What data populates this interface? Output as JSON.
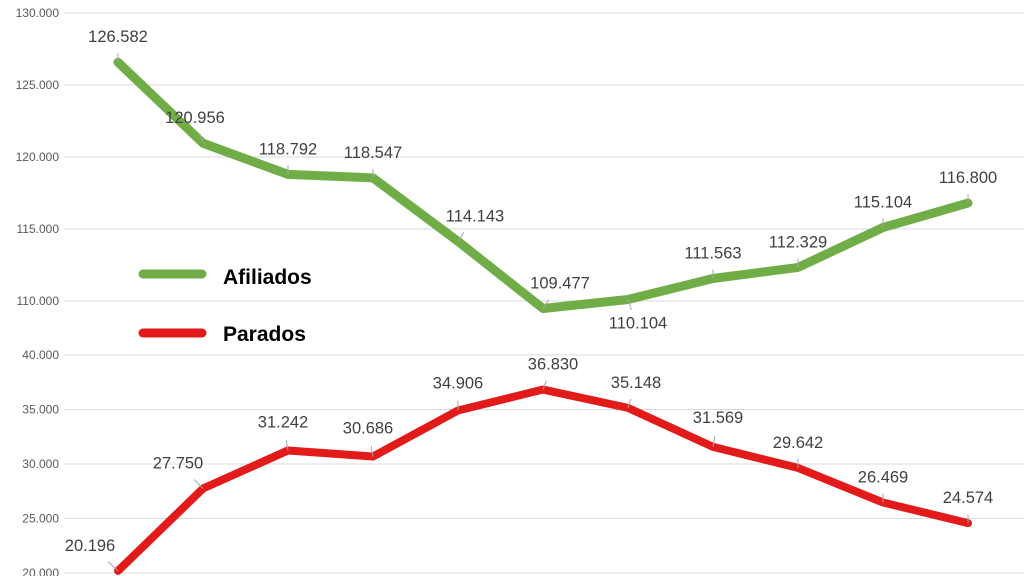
{
  "chart_data": [
    {
      "type": "line",
      "title": "",
      "xlabel": "",
      "ylabel": "",
      "ylim": [
        110000,
        130000
      ],
      "yticks": [
        "110.000",
        "115.000",
        "120.000",
        "125.000",
        "130.000"
      ],
      "grid": true,
      "legend": "left",
      "series": [
        {
          "name": "Afiliados",
          "color": "#70AD47",
          "values": [
            126582,
            120956,
            118792,
            118547,
            114143,
            109477,
            110104,
            111563,
            112329,
            115104,
            116800
          ],
          "labels": [
            "126.582",
            "120.956",
            "118.792",
            "118.547",
            "114.143",
            "109.477",
            "110.104",
            "111.563",
            "112.329",
            "115.104",
            "116.800"
          ]
        }
      ]
    },
    {
      "type": "line",
      "title": "",
      "xlabel": "",
      "ylabel": "",
      "ylim": [
        20000,
        40000
      ],
      "yticks": [
        "20.000",
        "25.000",
        "30.000",
        "35.000",
        "40.000"
      ],
      "grid": true,
      "legend": "left",
      "series": [
        {
          "name": "Parados",
          "color": "#E31A1A",
          "values": [
            20196,
            27750,
            31242,
            30686,
            34906,
            36830,
            35148,
            31569,
            29642,
            26469,
            24574
          ],
          "labels": [
            "20.196",
            "27.750",
            "31.242",
            "30.686",
            "34.906",
            "36.830",
            "35.148",
            "31.569",
            "29.642",
            "26.469",
            "24.574"
          ]
        }
      ]
    }
  ],
  "legend": {
    "items": [
      {
        "label": "Afiliados",
        "color": "#70AD47"
      },
      {
        "label": "Parados",
        "color": "#E31A1A"
      }
    ]
  }
}
